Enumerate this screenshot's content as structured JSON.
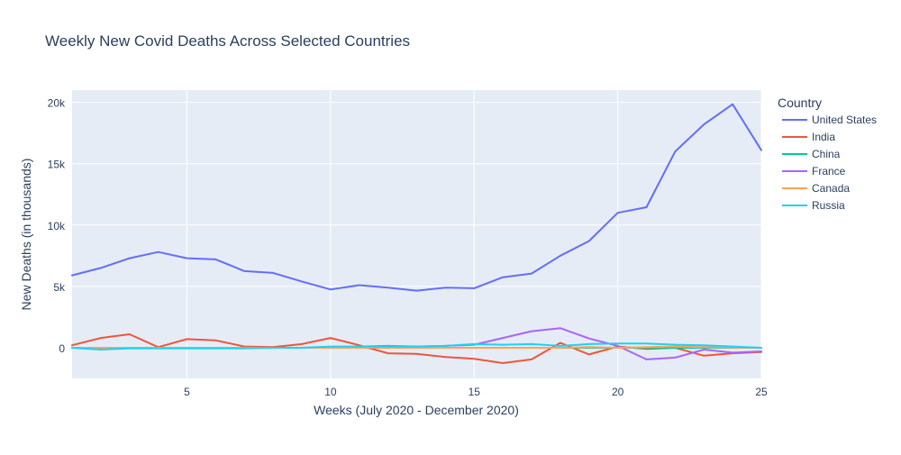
{
  "chart_data": {
    "type": "line",
    "title": "Weekly New Covid Deaths Across Selected Countries",
    "xlabel": "Weeks (July 2020 - December 2020)",
    "ylabel": "New Deaths (in thousands)",
    "xlim": [
      1,
      25
    ],
    "ylim": [
      -2500,
      21000
    ],
    "x_ticks": [
      5,
      10,
      15,
      20,
      25
    ],
    "y_ticks": [
      0,
      5000,
      10000,
      15000,
      20000
    ],
    "y_tick_labels": [
      "0",
      "5k",
      "10k",
      "15k",
      "20k"
    ],
    "grid": true,
    "legend_title": "Country",
    "legend_position": "top-right, outside plot",
    "colors": {
      "plot_background": "#E5ECF6",
      "grid": "#ffffff",
      "text": "#2a3f5f"
    },
    "x": [
      1,
      2,
      3,
      4,
      5,
      6,
      7,
      8,
      9,
      10,
      11,
      12,
      13,
      14,
      15,
      16,
      17,
      18,
      19,
      20,
      21,
      22,
      23,
      24,
      25
    ],
    "series": [
      {
        "name": "United States",
        "color": "#636EFA",
        "values": [
          5900,
          6500,
          7300,
          7800,
          7300,
          7200,
          6250,
          6100,
          5400,
          4750,
          5100,
          4900,
          4650,
          4900,
          4850,
          5750,
          6050,
          7500,
          8700,
          11000,
          11450,
          16000,
          18200,
          19850,
          16100
        ]
      },
      {
        "name": "India",
        "color": "#EF553B",
        "values": [
          200,
          800,
          1100,
          50,
          700,
          600,
          100,
          50,
          300,
          800,
          200,
          -450,
          -500,
          -750,
          -900,
          -1250,
          -950,
          400,
          -550,
          100,
          -100,
          0,
          -650,
          -450,
          -350
        ]
      },
      {
        "name": "China",
        "color": "#00CC96",
        "values": [
          0,
          -50,
          0,
          0,
          0,
          0,
          0,
          0,
          0,
          0,
          0,
          0,
          0,
          0,
          0,
          0,
          0,
          0,
          0,
          0,
          0,
          0,
          0,
          0,
          0
        ]
      },
      {
        "name": "France",
        "color": "#AB63FA",
        "values": [
          0,
          0,
          0,
          0,
          0,
          0,
          0,
          0,
          0,
          50,
          100,
          150,
          100,
          150,
          250,
          800,
          1350,
          1600,
          750,
          150,
          -950,
          -800,
          -150,
          -400,
          -300
        ]
      },
      {
        "name": "Canada",
        "color": "#FFA15A",
        "values": [
          0,
          0,
          0,
          0,
          0,
          0,
          0,
          0,
          0,
          0,
          0,
          0,
          0,
          0,
          0,
          0,
          0,
          0,
          50,
          0,
          50,
          100,
          50,
          20,
          0
        ]
      },
      {
        "name": "Russia",
        "color": "#19D3F3",
        "values": [
          0,
          -150,
          -50,
          -50,
          -50,
          -50,
          -50,
          0,
          0,
          100,
          100,
          100,
          100,
          150,
          300,
          250,
          300,
          150,
          300,
          350,
          350,
          250,
          200,
          100,
          0
        ]
      }
    ]
  }
}
